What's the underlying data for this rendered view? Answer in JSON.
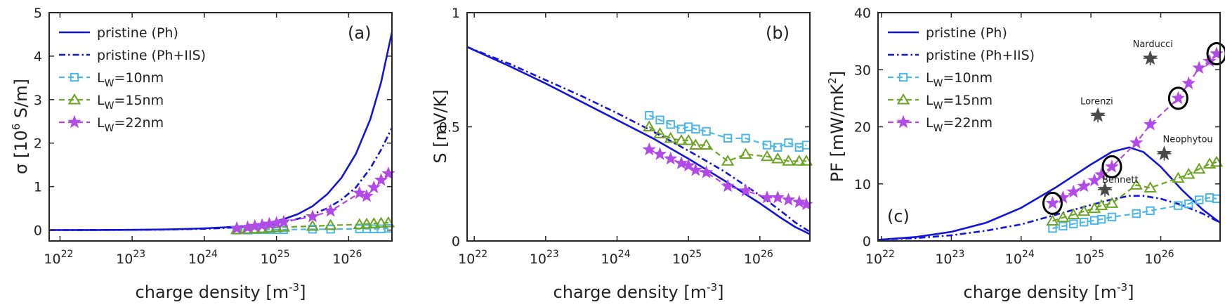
{
  "figure": {
    "colors": {
      "ph": "#1515d8",
      "w10": "#4db7e6",
      "w15": "#6ca524",
      "w22": "#b24ae8",
      "axis": "#262626",
      "star": "#4a4a4a"
    }
  },
  "chart_data": [
    {
      "type": "line",
      "panel": "(a)",
      "xlabel": "charge density [m",
      "xlabel_sup": "-3",
      "xlabel_end": "]",
      "ylabel_prefix": "σ [10",
      "ylabel_sup": "6",
      "ylabel_suffix": " S/m]",
      "xscale": "log",
      "xlim_log10": [
        21.85,
        26.6
      ],
      "ylim": [
        -0.25,
        5
      ],
      "xticks": [
        22,
        23,
        24,
        25,
        26
      ],
      "xtick_base": "10",
      "yticks": [
        0,
        1,
        2,
        3,
        4,
        5
      ],
      "legend": [
        {
          "key": "ph",
          "label": "pristine (Ph)"
        },
        {
          "key": "phi",
          "label": "pristine (Ph+IIS)"
        },
        {
          "key": "w10",
          "label_main": "L",
          "label_sub": "W",
          "label_rest": "=10nm"
        },
        {
          "key": "w15",
          "label_main": "L",
          "label_sub": "W",
          "label_rest": "=15nm"
        },
        {
          "key": "w22",
          "label_main": "L",
          "label_sub": "W",
          "label_rest": "=22nm"
        }
      ],
      "series": [
        {
          "key": "ph",
          "name": "pristine (Ph)",
          "x_log10": [
            21.85,
            22.5,
            23,
            23.5,
            24,
            24.3,
            24.6,
            24.9,
            25.1,
            25.3,
            25.5,
            25.7,
            25.9,
            26.1,
            26.3,
            26.45,
            26.6
          ],
          "y": [
            0,
            0.002,
            0.006,
            0.015,
            0.04,
            0.065,
            0.1,
            0.17,
            0.25,
            0.37,
            0.55,
            0.82,
            1.2,
            1.75,
            2.55,
            3.4,
            4.55
          ]
        },
        {
          "key": "phi",
          "name": "pristine (Ph+IIS)",
          "x_log10": [
            21.85,
            22.5,
            23,
            23.5,
            24,
            24.3,
            24.6,
            24.9,
            25.1,
            25.3,
            25.5,
            25.7,
            25.9,
            26.1,
            26.3,
            26.45,
            26.6
          ],
          "y": [
            0,
            0.002,
            0.005,
            0.012,
            0.03,
            0.05,
            0.08,
            0.12,
            0.18,
            0.26,
            0.36,
            0.5,
            0.7,
            0.98,
            1.42,
            1.85,
            2.35
          ]
        },
        {
          "key": "w10",
          "name": "LW=10nm",
          "x_log10": [
            24.45,
            24.6,
            24.7,
            24.8,
            24.9,
            25.0,
            25.1,
            25.5,
            25.75,
            26.15,
            26.25,
            26.35,
            26.45,
            26.55
          ],
          "y": [
            0.0,
            0.0,
            0.01,
            0.01,
            0.01,
            0.01,
            0.01,
            0.02,
            0.02,
            0.03,
            0.03,
            0.03,
            0.03,
            0.04
          ]
        },
        {
          "key": "w15",
          "name": "LW=15nm",
          "x_log10": [
            24.45,
            24.6,
            24.7,
            24.8,
            24.9,
            25.0,
            25.1,
            25.5,
            25.75,
            26.15,
            26.25,
            26.35,
            26.45,
            26.55
          ],
          "y": [
            0.01,
            0.02,
            0.03,
            0.04,
            0.05,
            0.06,
            0.07,
            0.09,
            0.11,
            0.13,
            0.14,
            0.15,
            0.16,
            0.17
          ]
        },
        {
          "key": "w22",
          "name": "LW=22nm",
          "x_log10": [
            24.45,
            24.6,
            24.7,
            24.8,
            24.9,
            25.0,
            25.1,
            25.5,
            25.75,
            26.15,
            26.25,
            26.35,
            26.45,
            26.55
          ],
          "y": [
            0.04,
            0.06,
            0.09,
            0.11,
            0.14,
            0.16,
            0.19,
            0.31,
            0.44,
            0.85,
            0.78,
            0.98,
            1.15,
            1.3
          ]
        }
      ]
    },
    {
      "type": "line",
      "panel": "(b)",
      "xlabel": "charge density [m",
      "xlabel_sup": "-3",
      "xlabel_end": "]",
      "ylabel": "S [mV/K]",
      "xscale": "log",
      "xlim_log10": [
        21.9,
        26.7
      ],
      "ylim": [
        0,
        1
      ],
      "xticks": [
        22,
        23,
        24,
        25,
        26
      ],
      "xtick_base": "10",
      "yticks": [
        0,
        0.5,
        1
      ],
      "ytick_labels": [
        "0",
        "0.5",
        "1"
      ],
      "series": [
        {
          "key": "ph",
          "name": "pristine (Ph)",
          "x_log10": [
            21.9,
            22.5,
            23,
            23.5,
            24,
            24.5,
            25,
            25.5,
            26,
            26.3,
            26.5,
            26.7
          ],
          "y": [
            0.85,
            0.765,
            0.69,
            0.61,
            0.53,
            0.45,
            0.36,
            0.265,
            0.165,
            0.1,
            0.06,
            0.03
          ]
        },
        {
          "key": "phi",
          "name": "pristine (Ph+IIS)",
          "x_log10": [
            21.9,
            22.5,
            23,
            23.5,
            24,
            24.5,
            25,
            25.5,
            26,
            26.3,
            26.5,
            26.7
          ],
          "y": [
            0.85,
            0.775,
            0.705,
            0.635,
            0.56,
            0.48,
            0.395,
            0.305,
            0.2,
            0.13,
            0.08,
            0.04
          ]
        },
        {
          "key": "w10",
          "name": "LW=10nm",
          "x_log10": [
            24.45,
            24.6,
            24.75,
            24.9,
            25.0,
            25.1,
            25.25,
            25.55,
            25.8,
            26.1,
            26.25,
            26.4,
            26.55,
            26.65
          ],
          "y": [
            0.55,
            0.53,
            0.51,
            0.49,
            0.5,
            0.49,
            0.48,
            0.45,
            0.45,
            0.42,
            0.41,
            0.43,
            0.41,
            0.42
          ]
        },
        {
          "key": "w15",
          "name": "LW=15nm",
          "x_log10": [
            24.45,
            24.6,
            24.75,
            24.9,
            25.0,
            25.1,
            25.25,
            25.55,
            25.8,
            26.1,
            26.25,
            26.4,
            26.55,
            26.65
          ],
          "y": [
            0.5,
            0.47,
            0.45,
            0.44,
            0.44,
            0.42,
            0.42,
            0.35,
            0.38,
            0.37,
            0.36,
            0.35,
            0.35,
            0.35
          ]
        },
        {
          "key": "w22",
          "name": "LW=22nm",
          "x_log10": [
            24.45,
            24.6,
            24.75,
            24.9,
            25.0,
            25.1,
            25.25,
            25.55,
            25.8,
            26.1,
            26.25,
            26.4,
            26.55,
            26.65
          ],
          "y": [
            0.4,
            0.38,
            0.36,
            0.34,
            0.33,
            0.31,
            0.3,
            0.24,
            0.22,
            0.19,
            0.19,
            0.18,
            0.17,
            0.16
          ]
        }
      ]
    },
    {
      "type": "line",
      "panel": "(c)",
      "xlabel": "charge density [m",
      "xlabel_sup": "-3",
      "xlabel_end": "]",
      "ylabel_prefix": "PF [mW/mK",
      "ylabel_sup": "2",
      "ylabel_suffix": "]",
      "xscale": "log",
      "xlim_log10": [
        21.95,
        26.85
      ],
      "ylim": [
        0,
        40
      ],
      "xticks": [
        22,
        23,
        24,
        25,
        26
      ],
      "xtick_base": "10",
      "yticks": [
        0,
        10,
        20,
        30,
        40
      ],
      "legend": [
        {
          "key": "ph",
          "label": "pristine (Ph)"
        },
        {
          "key": "phi",
          "label": "pristine (Ph+IIS)"
        },
        {
          "key": "w10",
          "label_main": "L",
          "label_sub": "W",
          "label_rest": "=10nm"
        },
        {
          "key": "w15",
          "label_main": "L",
          "label_sub": "W",
          "label_rest": "=15nm"
        },
        {
          "key": "w22",
          "label_main": "L",
          "label_sub": "W",
          "label_rest": "=22nm"
        }
      ],
      "series": [
        {
          "key": "ph",
          "name": "pristine (Ph)",
          "x_log10": [
            21.95,
            22.5,
            23,
            23.5,
            24,
            24.5,
            25,
            25.3,
            25.55,
            25.75,
            26.0,
            26.3,
            26.6,
            26.85
          ],
          "y": [
            0.2,
            0.7,
            1.6,
            3.2,
            5.8,
            9.4,
            13.4,
            15.6,
            16.4,
            15.6,
            13.0,
            9.0,
            5.5,
            3.2
          ]
        },
        {
          "key": "phi",
          "name": "pristine (Ph+IIS)",
          "x_log10": [
            21.95,
            22.5,
            23,
            23.5,
            24,
            24.5,
            25,
            25.3,
            25.55,
            25.75,
            26.0,
            26.3,
            26.6,
            26.85
          ],
          "y": [
            0.2,
            0.5,
            1.0,
            1.8,
            2.9,
            4.6,
            6.3,
            7.3,
            7.9,
            7.9,
            7.4,
            6.3,
            4.8,
            3.2
          ]
        },
        {
          "key": "w10",
          "name": "LW=10nm",
          "x_log10": [
            24.45,
            24.6,
            24.75,
            24.9,
            25.05,
            25.15,
            25.3,
            25.65,
            25.85,
            26.25,
            26.4,
            26.55,
            26.7,
            26.8
          ],
          "y": [
            2.2,
            2.6,
            3.0,
            3.3,
            3.6,
            3.8,
            4.2,
            4.8,
            5.3,
            6.2,
            6.5,
            7.2,
            7.6,
            7.4
          ]
        },
        {
          "key": "w15",
          "name": "LW=15nm",
          "x_log10": [
            24.45,
            24.6,
            24.75,
            24.9,
            25.05,
            25.15,
            25.3,
            25.65,
            25.85,
            26.25,
            26.4,
            26.55,
            26.7,
            26.8
          ],
          "y": [
            3.5,
            4.1,
            4.6,
            5.2,
            5.7,
            6.2,
            6.6,
            9.8,
            9.3,
            11.0,
            11.7,
            12.6,
            13.5,
            13.8
          ]
        },
        {
          "key": "w22",
          "name": "LW=22nm",
          "x_log10": [
            24.45,
            24.6,
            24.75,
            24.9,
            25.05,
            25.15,
            25.3,
            25.65,
            25.85,
            26.25,
            26.4,
            26.55,
            26.7,
            26.8
          ],
          "y": [
            6.6,
            7.6,
            8.6,
            9.6,
            10.6,
            11.6,
            13.0,
            17.2,
            20.4,
            25.0,
            27.6,
            30.3,
            31.5,
            32.8
          ]
        }
      ],
      "reference_points": [
        {
          "label": "Narducci",
          "x_log10": 25.85,
          "y": 32,
          "label_dx": -25,
          "label_dy": -16
        },
        {
          "label": "Lorenzi",
          "x_log10": 25.1,
          "y": 22,
          "label_dx": -25,
          "label_dy": -16
        },
        {
          "label": "Neophytou",
          "x_log10": 26.05,
          "y": 15.3,
          "label_dx": -2,
          "label_dy": -16
        },
        {
          "label": "Bennett",
          "x_log10": 25.2,
          "y": 9,
          "label_dx": -4,
          "label_dy": -10
        }
      ],
      "circled_points": [
        {
          "x_log10": 24.45,
          "y": 6.6
        },
        {
          "x_log10": 25.3,
          "y": 13.0
        },
        {
          "x_log10": 26.25,
          "y": 25.0
        },
        {
          "x_log10": 26.8,
          "y": 32.8
        }
      ]
    }
  ]
}
